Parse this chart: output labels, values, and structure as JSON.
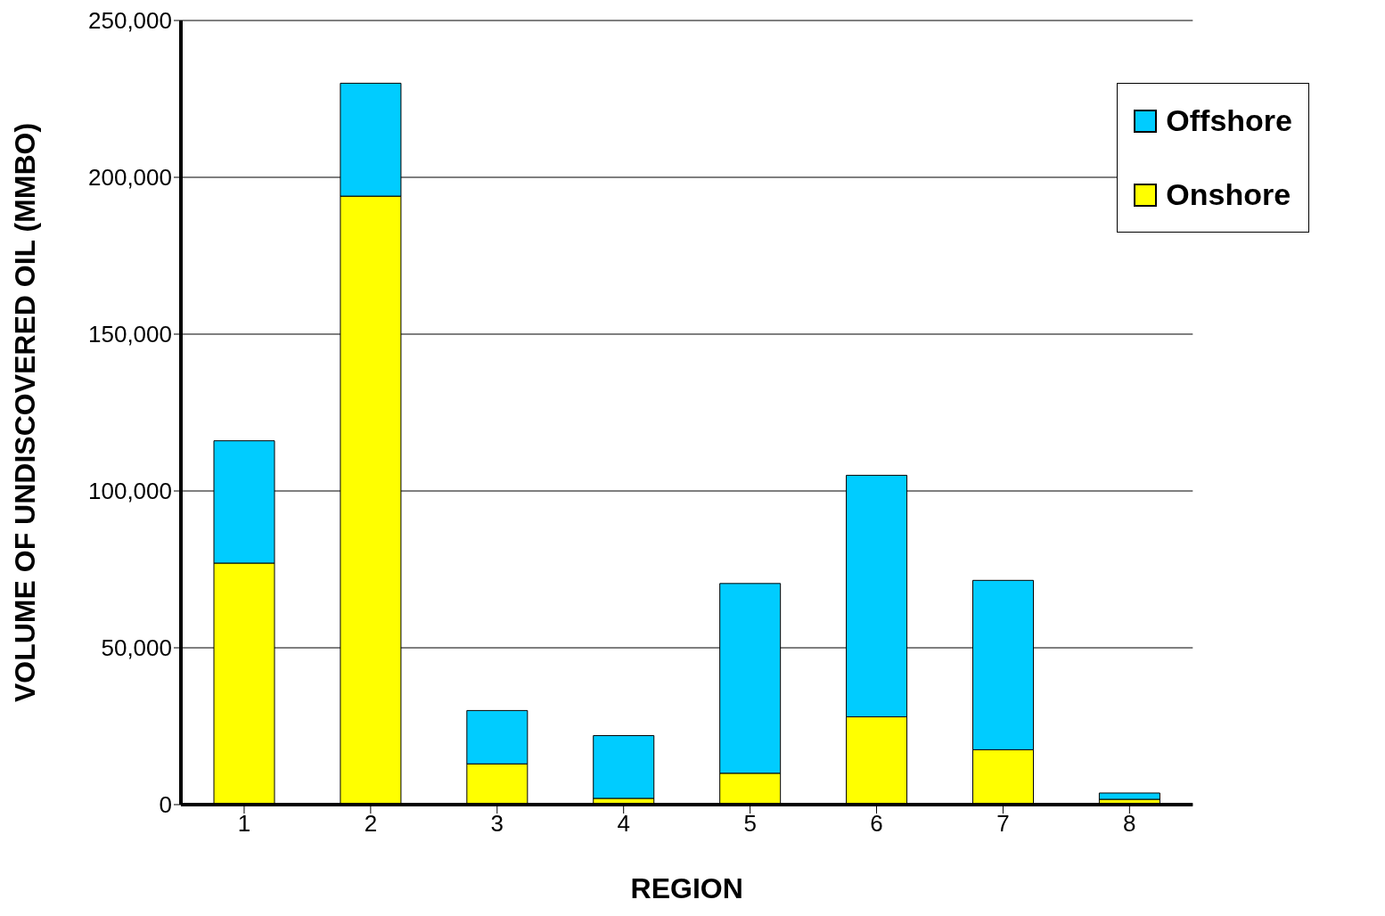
{
  "chart_data": {
    "type": "bar",
    "stacked": true,
    "xlabel": "REGION",
    "ylabel": "VOLUME OF UNDISCOVERED OIL (MMBO)",
    "categories": [
      "1",
      "2",
      "3",
      "4",
      "5",
      "6",
      "7",
      "8"
    ],
    "series": [
      {
        "name": "Onshore",
        "color": "#ffff00",
        "values": [
          77000,
          194000,
          13000,
          2000,
          10000,
          28000,
          17500,
          1700
        ]
      },
      {
        "name": "Offshore",
        "color": "#00ccff",
        "values": [
          39000,
          36000,
          17000,
          20000,
          60500,
          77000,
          54000,
          2000
        ]
      }
    ],
    "ylim": [
      0,
      250000
    ],
    "yticks": [
      {
        "value": 0,
        "label": "0"
      },
      {
        "value": 50000,
        "label": "50,000"
      },
      {
        "value": 100000,
        "label": "100,000"
      },
      {
        "value": 150000,
        "label": "150,000"
      },
      {
        "value": 200000,
        "label": "200,000"
      },
      {
        "value": 250000,
        "label": "250,000"
      }
    ],
    "grid": "y",
    "legend": "top right"
  }
}
